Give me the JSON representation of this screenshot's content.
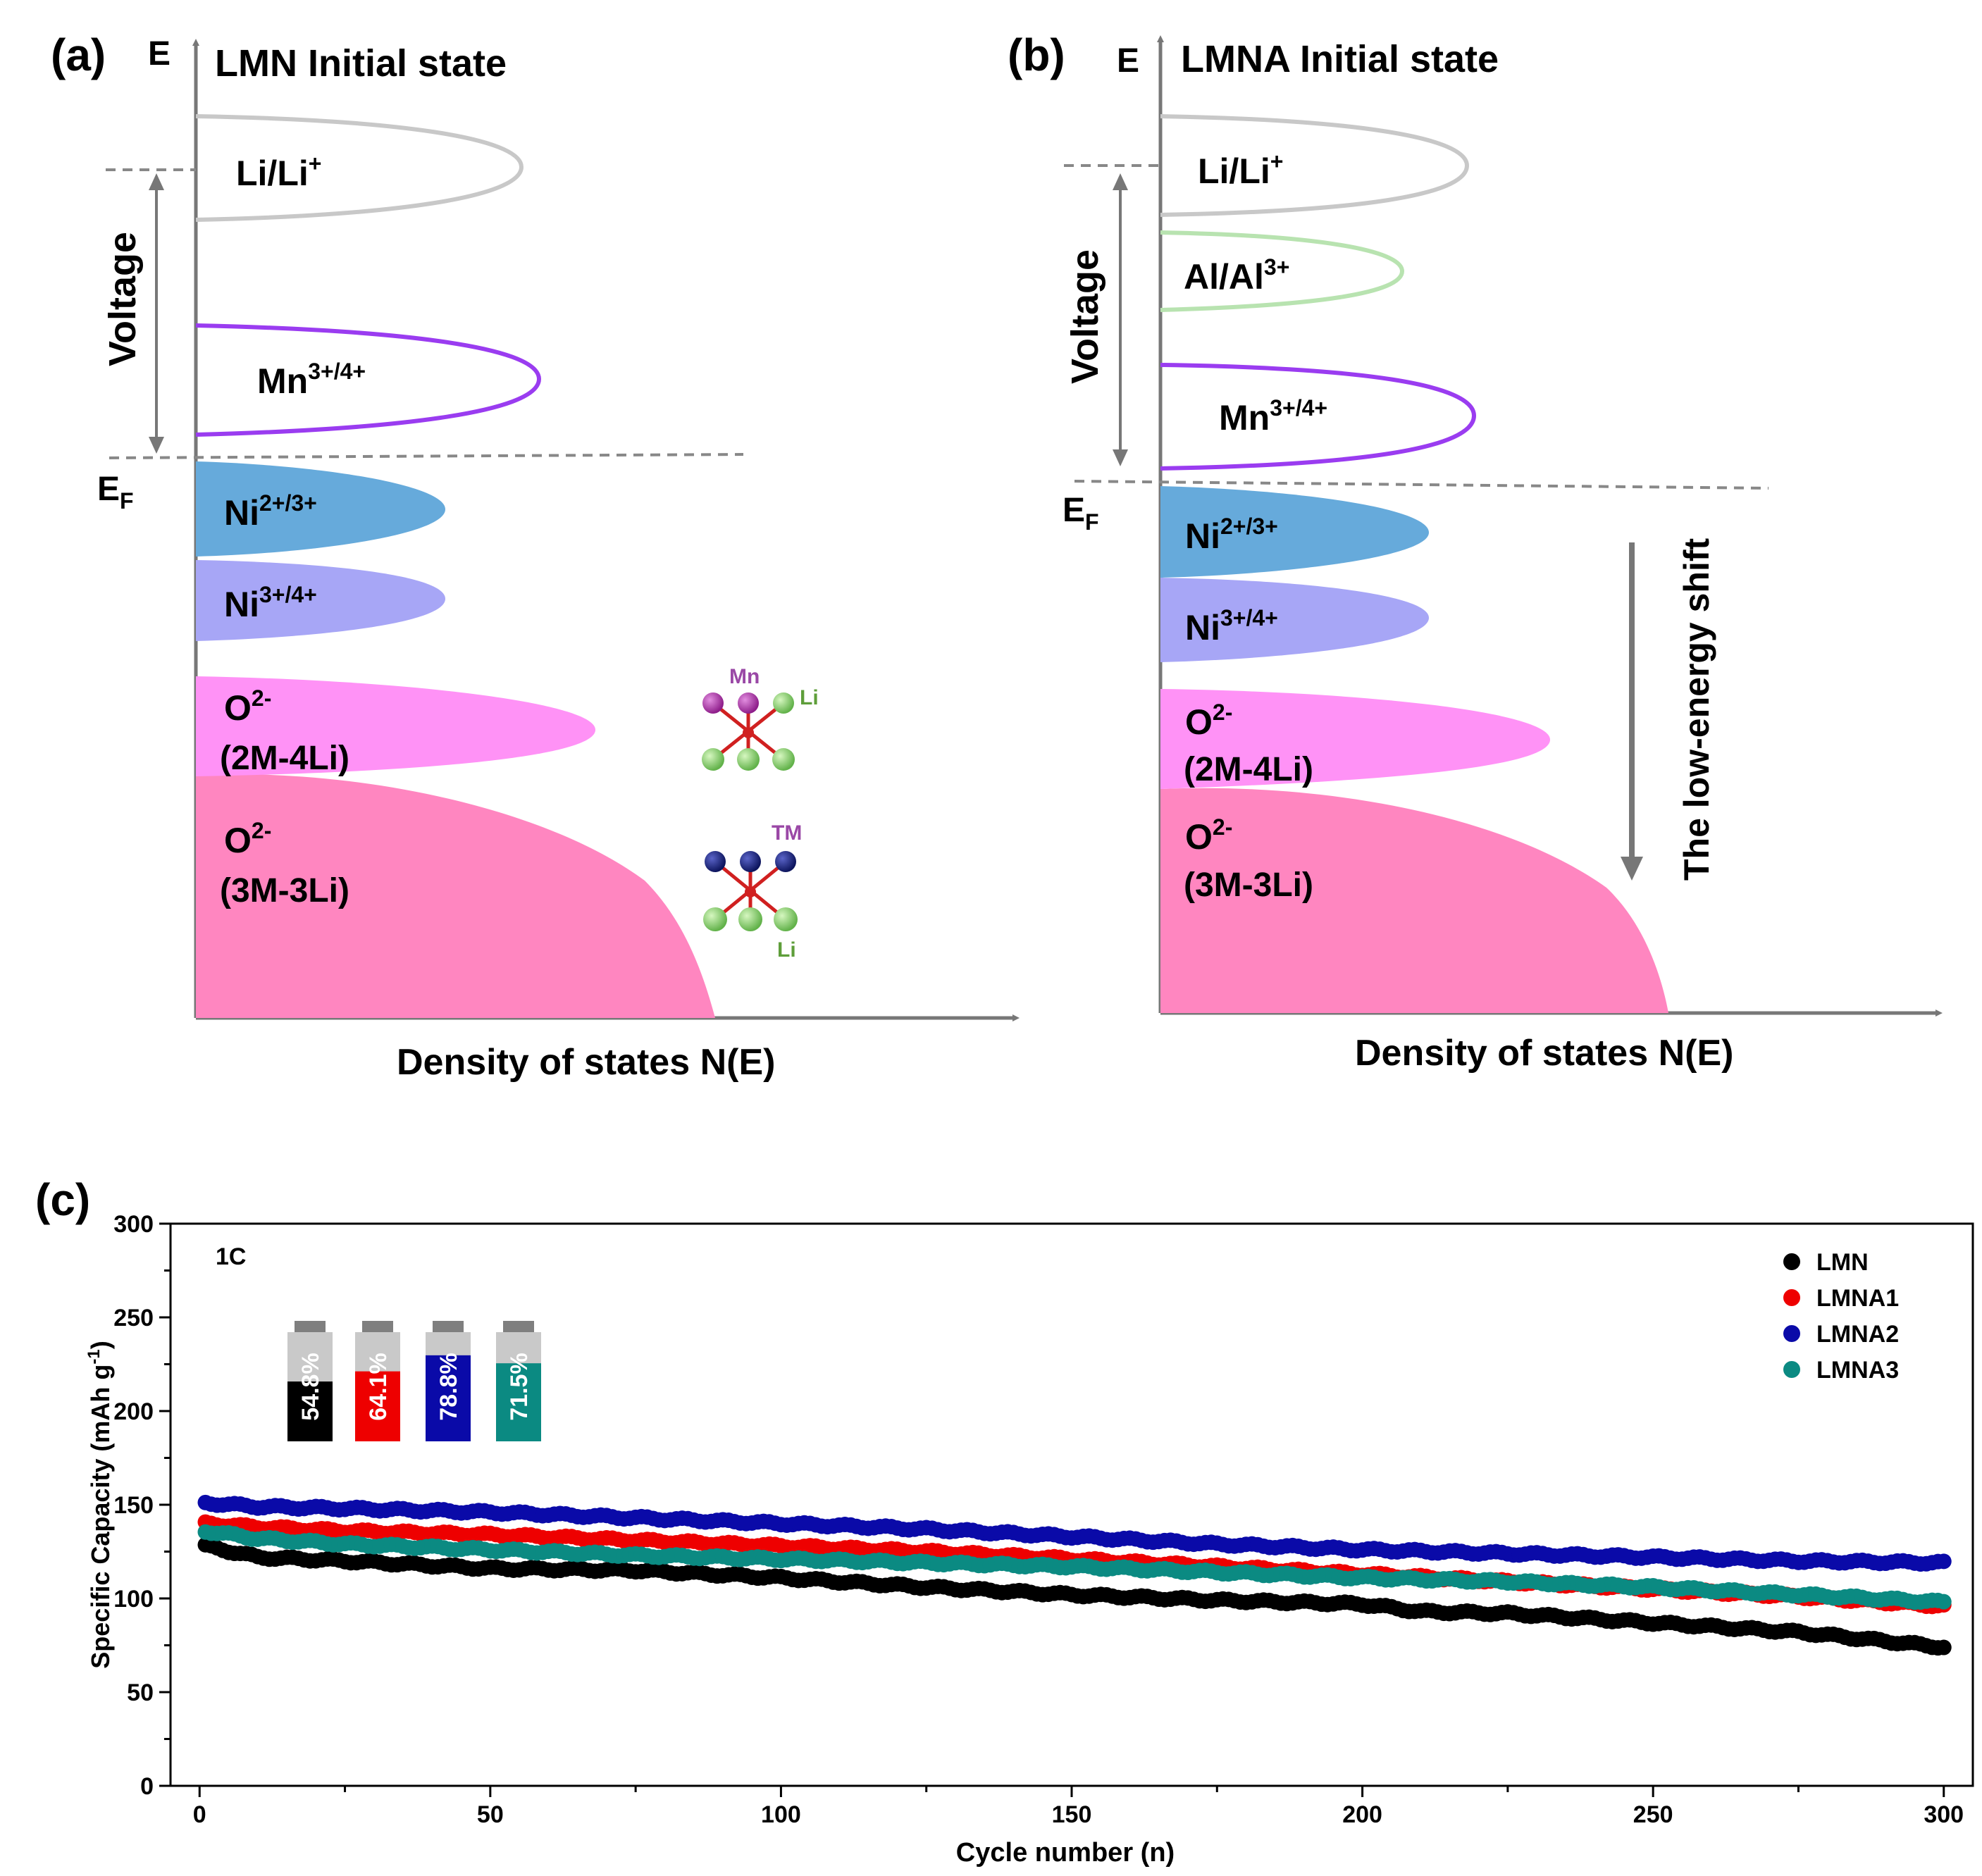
{
  "panel_a": {
    "panel_label": "(a)",
    "axis_e": "E",
    "title": "LMN  Initial state",
    "voltage_label": "Voltage",
    "fermi_label": "E",
    "fermi_sub": "F",
    "xlabel": "Density of states N(E)",
    "bands": {
      "li": {
        "base": "Li/Li",
        "sup": "+"
      },
      "mn": {
        "base": "Mn",
        "sup": "3+/4+"
      },
      "ni23": {
        "base": "Ni",
        "sup": "2+/3+"
      },
      "ni34": {
        "base": "Ni",
        "sup": "3+/4+"
      },
      "o2m": {
        "base": "O",
        "sup": "2-",
        "line2": "(2M-4Li)"
      },
      "o3m": {
        "base": "O",
        "sup": "2-",
        "line2": "(3M-3Li)"
      }
    },
    "cluster_labels": {
      "mn": "Mn",
      "li_top": "Li",
      "tm": "TM",
      "li_bottom": "Li"
    },
    "colors": {
      "li": "#c8c8c8",
      "mn": "#9a3cf0",
      "ni23": "#66aadb",
      "ni34": "#a7a6f6",
      "o2m": "#ff92f6",
      "o3m": "#ff86c0"
    }
  },
  "panel_b": {
    "panel_label": "(b)",
    "axis_e": "E",
    "title": "LMNA  Initial state",
    "voltage_label": "Voltage",
    "fermi_label": "E",
    "fermi_sub": "F",
    "xlabel": "Density of states N(E)",
    "shift_label": "The low-energy shift",
    "bands": {
      "li": {
        "base": "Li/Li",
        "sup": "+"
      },
      "al": {
        "base": "Al/Al",
        "sup": "3+"
      },
      "mn": {
        "base": "Mn",
        "sup": "3+/4+"
      },
      "ni23": {
        "base": "Ni",
        "sup": "2+/3+"
      },
      "ni34": {
        "base": "Ni",
        "sup": "3+/4+"
      },
      "o2m": {
        "base": "O",
        "sup": "2-",
        "line2": "(2M-4Li)"
      },
      "o3m": {
        "base": "O",
        "sup": "2-",
        "line2": "(3M-3Li)"
      }
    },
    "colors": {
      "al": "#b8e3b0"
    }
  },
  "panel_c": {
    "panel_label": "(c)",
    "rate_label": "1C",
    "battery_values": [
      "54.8%",
      "64.1%",
      "78.8%",
      "71.5%"
    ],
    "battery_fill": [
      0.548,
      0.641,
      0.788,
      0.715
    ]
  },
  "chart_data": {
    "type": "scatter",
    "xlabel": "Cycle number (n)",
    "ylabel": "Specific Capacity (mAh g",
    "ylabel_sup": "-1",
    "ylabel_end": ")",
    "xlim": [
      -5,
      305
    ],
    "ylim": [
      0,
      300
    ],
    "xticks": [
      0,
      50,
      100,
      150,
      200,
      250,
      300
    ],
    "yticks": [
      0,
      50,
      100,
      150,
      200,
      250,
      300
    ],
    "legend_position": "top-right",
    "series": [
      {
        "name": "LMN",
        "color": "#000000",
        "x": [
          1,
          10,
          25,
          50,
          75,
          100,
          125,
          150,
          175,
          200,
          210,
          225,
          250,
          275,
          300
        ],
        "y": [
          128,
          122,
          120,
          116,
          115,
          111,
          106,
          102,
          99,
          97,
          93,
          92,
          87,
          82,
          74
        ]
      },
      {
        "name": "LMNA1",
        "color": "#ee0000",
        "x": [
          1,
          10,
          25,
          50,
          75,
          100,
          125,
          150,
          175,
          200,
          225,
          250,
          275,
          300
        ],
        "y": [
          140,
          138,
          136,
          134,
          131,
          128,
          125,
          121,
          117,
          113,
          109,
          105,
          101,
          96
        ]
      },
      {
        "name": "LMNA2",
        "color": "#0a0aa8",
        "x": [
          1,
          10,
          25,
          50,
          75,
          100,
          125,
          150,
          175,
          200,
          225,
          250,
          275,
          300
        ],
        "y": [
          151,
          149,
          148,
          146,
          143,
          140,
          137,
          133,
          129,
          126,
          124,
          122,
          120,
          119
        ]
      },
      {
        "name": "LMNA3",
        "color": "#0b8a82",
        "x": [
          1,
          10,
          25,
          50,
          75,
          100,
          125,
          150,
          175,
          200,
          225,
          250,
          275,
          300
        ],
        "y": [
          136,
          132,
          129,
          126,
          123,
          121,
          119,
          117,
          114,
          111,
          109,
          106,
          102,
          98
        ]
      }
    ]
  }
}
